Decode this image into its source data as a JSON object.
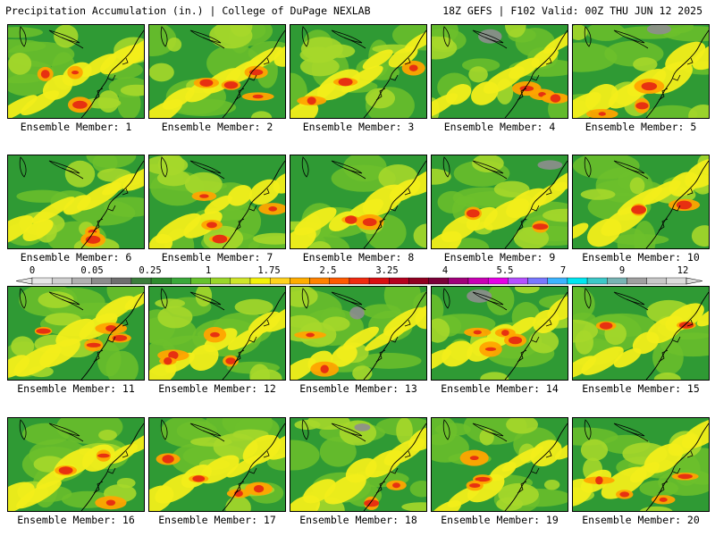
{
  "header": {
    "title": "Precipitation Accumulation (in.) | College of DuPage NEXLAB",
    "run_info": "18Z GEFS | F102 Valid: 00Z THU JUN 12 2025"
  },
  "panels": [
    {
      "label": "Ensemble Member: 1"
    },
    {
      "label": "Ensemble Member: 2"
    },
    {
      "label": "Ensemble Member: 3"
    },
    {
      "label": "Ensemble Member: 4"
    },
    {
      "label": "Ensemble Member: 5"
    },
    {
      "label": "Ensemble Member: 6"
    },
    {
      "label": "Ensemble Member: 7"
    },
    {
      "label": "Ensemble Member: 8"
    },
    {
      "label": "Ensemble Member: 9"
    },
    {
      "label": "Ensemble Member: 10"
    },
    {
      "label": "Ensemble Member: 11"
    },
    {
      "label": "Ensemble Member: 12"
    },
    {
      "label": "Ensemble Member: 13"
    },
    {
      "label": "Ensemble Member: 14"
    },
    {
      "label": "Ensemble Member: 15"
    },
    {
      "label": "Ensemble Member: 16"
    },
    {
      "label": "Ensemble Member: 17"
    },
    {
      "label": "Ensemble Member: 18"
    },
    {
      "label": "Ensemble Member: 19"
    },
    {
      "label": "Ensemble Member: 20"
    }
  ],
  "colorbar": {
    "tick_labels": [
      "0",
      "0.05",
      "0.25",
      "1",
      "1.75",
      "2.5",
      "3.25",
      "4",
      "5.5",
      "7",
      "9",
      "12"
    ],
    "colors": [
      "#e6e6e6",
      "#cfcfcf",
      "#b0b0b0",
      "#8c8c8c",
      "#6e6e6e",
      "#3b7d3b",
      "#2e8b2e",
      "#3aa83a",
      "#66c22e",
      "#9ad62a",
      "#cfe52a",
      "#f4f20a",
      "#ffd21e",
      "#ffad00",
      "#ff8200",
      "#ff5a00",
      "#f02a10",
      "#d80f12",
      "#b4001e",
      "#900020",
      "#7a0038",
      "#a0007a",
      "#c800b4",
      "#e600e6",
      "#b450ff",
      "#7878ff",
      "#3cb4ff",
      "#00e6f0",
      "#3cc8c8",
      "#78b4b4",
      "#a0a0a0",
      "#c8c8c8",
      "#dcdcdc"
    ]
  }
}
